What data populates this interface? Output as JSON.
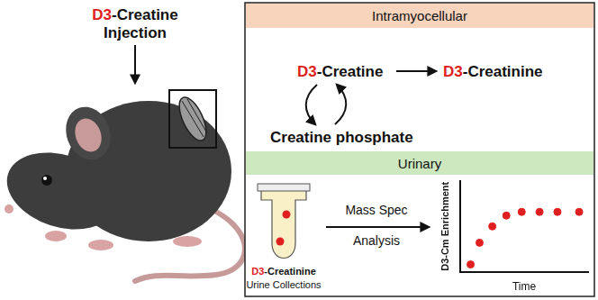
{
  "left": {
    "title_line1": "D3-Creatine",
    "title_line2": "Injection"
  },
  "intramyocellular": {
    "header": "Intramyocellular",
    "creatine": "D3-Creatine",
    "phosphate": "Creatine phosphate",
    "creatinine": "D3-Creatinine"
  },
  "urinary": {
    "header": "Urinary",
    "tube_label": "D3-Creatinine",
    "tube_caption": "Urine Collections",
    "arrow_label_1": "Mass Spec",
    "arrow_label_2": "Analysis"
  },
  "chart_data": {
    "type": "scatter",
    "x": [
      0.8,
      1.5,
      2.5,
      3.6,
      4.8,
      6.2,
      7.6,
      9.3
    ],
    "values": [
      0.08,
      0.32,
      0.5,
      0.62,
      0.66,
      0.66,
      0.66,
      0.66
    ],
    "color": "#e02020",
    "marker": "circle",
    "xlabel": "Time",
    "ylabel": "D3-Cm Enrichment",
    "xlim": [
      0,
      10
    ],
    "ylim": [
      0,
      1
    ],
    "grid": false,
    "tick_labels": false
  }
}
